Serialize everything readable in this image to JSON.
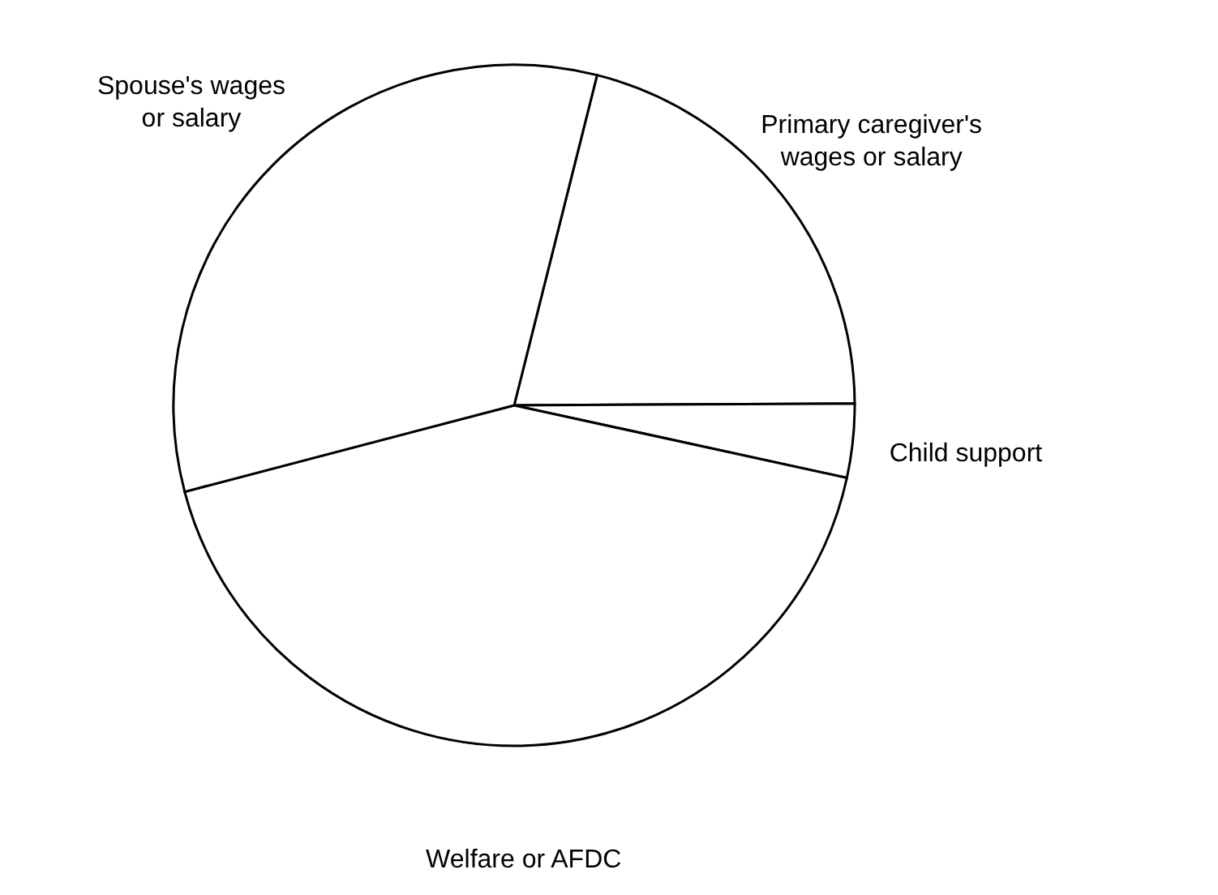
{
  "chart_data": {
    "type": "pie",
    "categories": [
      "Primary caregiver's wages or salary",
      "Child support",
      "Welfare or AFDC",
      "Spouse's wages or salary"
    ],
    "values": [
      21,
      3.5,
      42.5,
      33
    ],
    "colors": [
      "#ffffff",
      "#ffffff",
      "#ffffff",
      "#ffffff"
    ]
  }
}
